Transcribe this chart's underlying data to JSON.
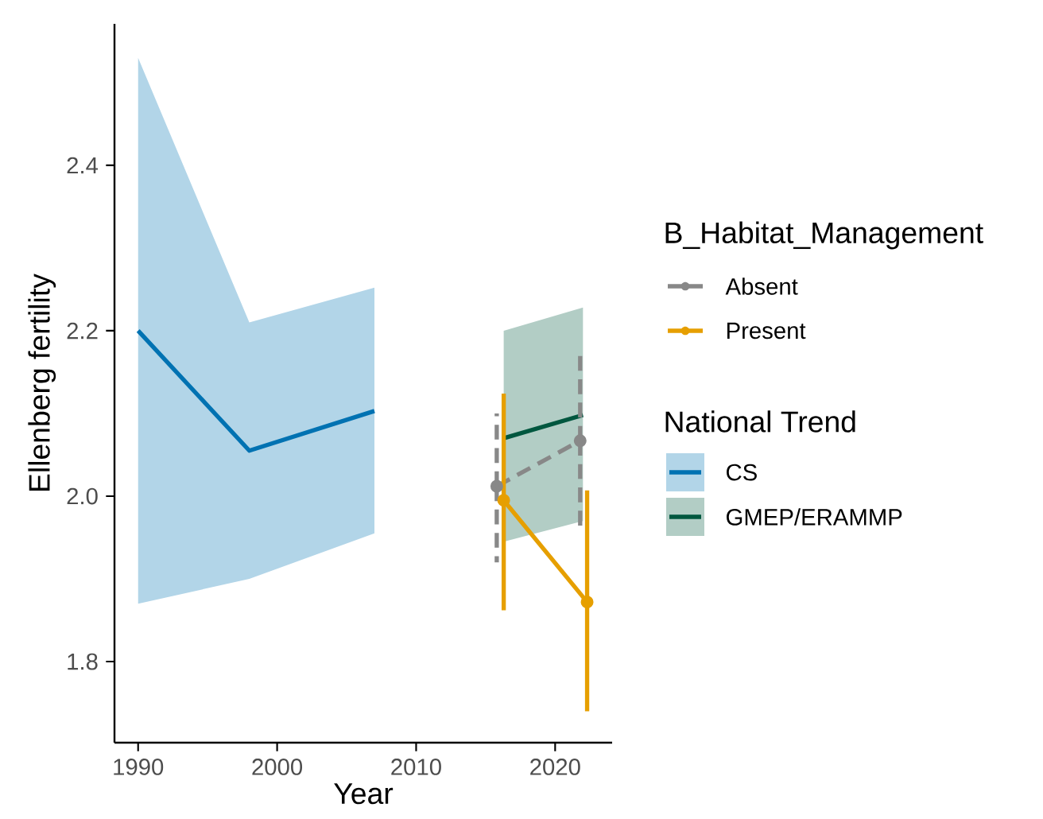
{
  "chart_data": {
    "type": "line",
    "xlabel": "Year",
    "ylabel": "Ellenberg fertility",
    "legend_title": "B_Habitat_Management",
    "annotations": [
      "National Trend"
    ],
    "xlim": [
      1988.3,
      2024.1
    ],
    "ylim": [
      1.702,
      2.571
    ],
    "xticks": [
      1990,
      2000,
      2010,
      2020
    ],
    "yticks": [
      {
        "value": 1.8,
        "label": "1.8"
      },
      {
        "value": 2.0,
        "label": "2.0"
      },
      {
        "value": 2.2,
        "label": "2.2"
      },
      {
        "value": 2.4,
        "label": "2.4"
      }
    ],
    "grid": false,
    "legend": "right",
    "series": [
      {
        "name": "CS",
        "color": "#0072b2",
        "x": [
          1990,
          1998,
          2007
        ],
        "values": [
          2.2,
          2.055,
          2.103
        ],
        "lower": [
          1.87,
          1.9,
          1.955
        ],
        "upper": [
          2.53,
          2.21,
          2.252
        ],
        "marker": "none",
        "line_style": "solid"
      },
      {
        "name": "GMEP/ERAMMP",
        "color": "#00573f",
        "x": [
          2016.3,
          2022.0
        ],
        "values": [
          2.07,
          2.098
        ],
        "lower": [
          1.945,
          1.97
        ],
        "upper": [
          2.2,
          2.228
        ],
        "marker": "none",
        "line_style": "solid"
      },
      {
        "name": "Absent",
        "color": "#888888",
        "x": [
          2015.8,
          2021.8
        ],
        "values": [
          2.012,
          2.067
        ],
        "errors": [
          [
            1.92,
            2.1
          ],
          [
            1.96,
            2.175
          ]
        ],
        "marker": "circle",
        "line_style": "dashed"
      },
      {
        "name": "Present",
        "color": "#e69f00",
        "x": [
          2016.3,
          2022.3
        ],
        "values": [
          1.995,
          1.872
        ],
        "errors": [
          [
            1.862,
            2.124
          ],
          [
            1.74,
            2.007
          ]
        ],
        "marker": "circle",
        "line_style": "solid"
      }
    ]
  }
}
